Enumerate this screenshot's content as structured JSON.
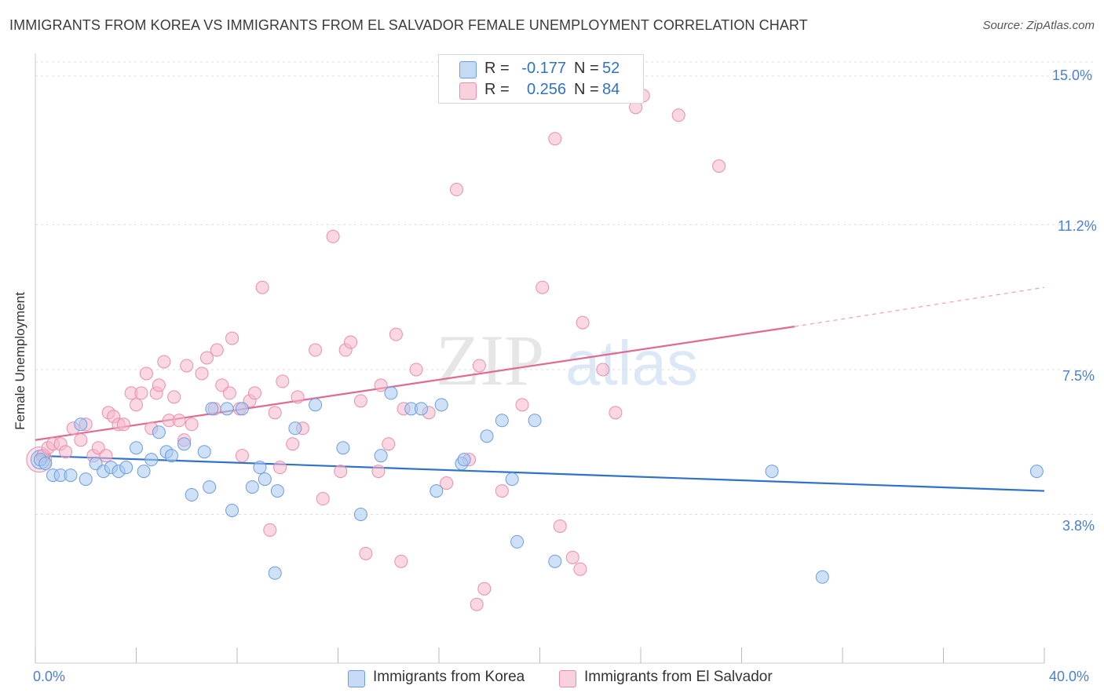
{
  "title": "IMMIGRANTS FROM KOREA VS IMMIGRANTS FROM EL SALVADOR FEMALE UNEMPLOYMENT CORRELATION CHART",
  "source": "Source: ZipAtlas.com",
  "watermark": {
    "zip": "ZIP",
    "atlas": "atlas"
  },
  "colors": {
    "korea_fill": "#a8c8f0",
    "korea_stroke": "#6d9de0",
    "korea_line": "#2f72c8",
    "salvador_fill": "#f5b8cc",
    "salvador_stroke": "#ea8eaa",
    "salvador_line": "#e06a92",
    "grid": "#dddddd",
    "axis_text": "#4a7fd0"
  },
  "legend_top": [
    {
      "r_label": "R =",
      "r_value": "-0.177",
      "n_label": "N =",
      "n_value": "52"
    },
    {
      "r_label": "R =",
      "r_value": "0.256",
      "n_label": "N =",
      "n_value": "84"
    }
  ],
  "legend_bottom": [
    "Immigrants from Korea",
    "Immigrants from El Salvador"
  ],
  "x_tick_labels": {
    "min": "0.0%",
    "max": "40.0%"
  },
  "y_tick_labels": [
    "15.0%",
    "11.2%",
    "7.5%",
    "3.8%"
  ],
  "chart_data": {
    "type": "scatter",
    "title": "IMMIGRANTS FROM KOREA VS IMMIGRANTS FROM EL SALVADOR FEMALE UNEMPLOYMENT CORRELATION CHART",
    "xlabel": "",
    "ylabel": "Female Unemployment",
    "xlim": [
      0,
      40
    ],
    "ylim": [
      0,
      15.6
    ],
    "y_ticks": [
      3.8,
      7.5,
      11.2,
      15.0
    ],
    "grid": true,
    "legend_placement": "top-center",
    "series": [
      {
        "name": "Immigrants from Korea",
        "r": -0.177,
        "n": 52,
        "trend": {
          "x": [
            0,
            40
          ],
          "y": [
            5.3,
            4.4
          ]
        },
        "points": [
          [
            0.2,
            5.2
          ],
          [
            0.4,
            5.1
          ],
          [
            0.7,
            4.8
          ],
          [
            1.0,
            4.8
          ],
          [
            1.4,
            4.8
          ],
          [
            1.8,
            6.1
          ],
          [
            2.0,
            4.7
          ],
          [
            2.4,
            5.1
          ],
          [
            2.7,
            4.9
          ],
          [
            3.0,
            5.0
          ],
          [
            3.3,
            4.9
          ],
          [
            3.6,
            5.0
          ],
          [
            4.0,
            5.5
          ],
          [
            4.3,
            4.9
          ],
          [
            4.6,
            5.2
          ],
          [
            4.9,
            5.9
          ],
          [
            5.2,
            5.4
          ],
          [
            5.4,
            5.3
          ],
          [
            5.9,
            5.6
          ],
          [
            6.2,
            4.3
          ],
          [
            6.7,
            5.4
          ],
          [
            6.9,
            4.5
          ],
          [
            7.0,
            6.5
          ],
          [
            7.6,
            6.5
          ],
          [
            7.8,
            3.9
          ],
          [
            8.2,
            6.5
          ],
          [
            8.6,
            4.5
          ],
          [
            8.9,
            5.0
          ],
          [
            9.1,
            4.7
          ],
          [
            9.5,
            2.3
          ],
          [
            9.6,
            4.4
          ],
          [
            10.3,
            6.0
          ],
          [
            11.1,
            6.6
          ],
          [
            12.2,
            5.5
          ],
          [
            12.9,
            3.8
          ],
          [
            13.7,
            5.3
          ],
          [
            14.1,
            6.9
          ],
          [
            14.9,
            6.5
          ],
          [
            15.3,
            6.5
          ],
          [
            15.9,
            4.4
          ],
          [
            16.1,
            6.6
          ],
          [
            16.9,
            5.1
          ],
          [
            17.0,
            5.2
          ],
          [
            17.9,
            5.8
          ],
          [
            18.5,
            6.2
          ],
          [
            18.9,
            4.7
          ],
          [
            19.1,
            3.1
          ],
          [
            19.8,
            6.2
          ],
          [
            20.6,
            2.6
          ],
          [
            29.2,
            4.9
          ],
          [
            31.2,
            2.2
          ],
          [
            39.7,
            4.9
          ]
        ]
      },
      {
        "name": "Immigrants from El Salvador",
        "r": 0.256,
        "n": 84,
        "trend": {
          "x": [
            0,
            30.1
          ],
          "y": [
            5.7,
            8.6
          ]
        },
        "trend_dashed": {
          "x": [
            30.1,
            40
          ],
          "y": [
            8.6,
            9.6
          ]
        },
        "points": [
          [
            0.3,
            5.3
          ],
          [
            0.5,
            5.5
          ],
          [
            0.7,
            5.6
          ],
          [
            1.0,
            5.6
          ],
          [
            1.2,
            5.4
          ],
          [
            1.5,
            6.0
          ],
          [
            1.8,
            5.7
          ],
          [
            2.0,
            6.1
          ],
          [
            2.3,
            5.3
          ],
          [
            2.5,
            5.5
          ],
          [
            2.8,
            5.3
          ],
          [
            2.9,
            6.4
          ],
          [
            3.1,
            6.3
          ],
          [
            3.3,
            6.1
          ],
          [
            3.5,
            6.1
          ],
          [
            3.8,
            6.9
          ],
          [
            4.0,
            6.6
          ],
          [
            4.2,
            6.9
          ],
          [
            4.4,
            7.4
          ],
          [
            4.6,
            6.0
          ],
          [
            4.8,
            6.9
          ],
          [
            4.9,
            7.1
          ],
          [
            5.1,
            7.7
          ],
          [
            5.3,
            6.2
          ],
          [
            5.5,
            6.8
          ],
          [
            5.7,
            6.2
          ],
          [
            5.9,
            5.7
          ],
          [
            6.0,
            7.6
          ],
          [
            6.2,
            6.1
          ],
          [
            6.6,
            7.4
          ],
          [
            6.8,
            7.8
          ],
          [
            7.1,
            6.5
          ],
          [
            7.2,
            8.0
          ],
          [
            7.4,
            7.1
          ],
          [
            7.7,
            6.9
          ],
          [
            7.8,
            8.3
          ],
          [
            8.1,
            6.5
          ],
          [
            8.2,
            5.3
          ],
          [
            8.5,
            6.7
          ],
          [
            8.7,
            6.9
          ],
          [
            9.0,
            9.6
          ],
          [
            9.3,
            3.4
          ],
          [
            9.5,
            6.4
          ],
          [
            9.7,
            5.0
          ],
          [
            9.8,
            7.2
          ],
          [
            10.2,
            5.6
          ],
          [
            10.4,
            6.8
          ],
          [
            10.6,
            6.0
          ],
          [
            11.1,
            8.0
          ],
          [
            11.4,
            4.2
          ],
          [
            11.8,
            10.9
          ],
          [
            12.1,
            4.9
          ],
          [
            12.3,
            8.0
          ],
          [
            12.5,
            8.2
          ],
          [
            12.9,
            6.7
          ],
          [
            13.1,
            2.8
          ],
          [
            13.6,
            4.9
          ],
          [
            13.7,
            7.1
          ],
          [
            14.0,
            5.6
          ],
          [
            14.3,
            8.4
          ],
          [
            14.5,
            2.6
          ],
          [
            14.6,
            6.5
          ],
          [
            15.1,
            7.5
          ],
          [
            15.6,
            6.4
          ],
          [
            16.3,
            4.6
          ],
          [
            16.7,
            12.1
          ],
          [
            17.2,
            5.2
          ],
          [
            17.5,
            1.5
          ],
          [
            17.6,
            7.6
          ],
          [
            17.8,
            1.9
          ],
          [
            18.5,
            4.4
          ],
          [
            19.3,
            6.6
          ],
          [
            20.1,
            9.6
          ],
          [
            20.6,
            13.4
          ],
          [
            20.8,
            3.5
          ],
          [
            21.3,
            2.7
          ],
          [
            21.6,
            2.4
          ],
          [
            21.7,
            8.7
          ],
          [
            22.5,
            7.5
          ],
          [
            23.0,
            6.4
          ],
          [
            23.8,
            14.2
          ],
          [
            24.1,
            14.5
          ],
          [
            25.5,
            14.0
          ],
          [
            27.1,
            12.7
          ]
        ]
      }
    ]
  }
}
